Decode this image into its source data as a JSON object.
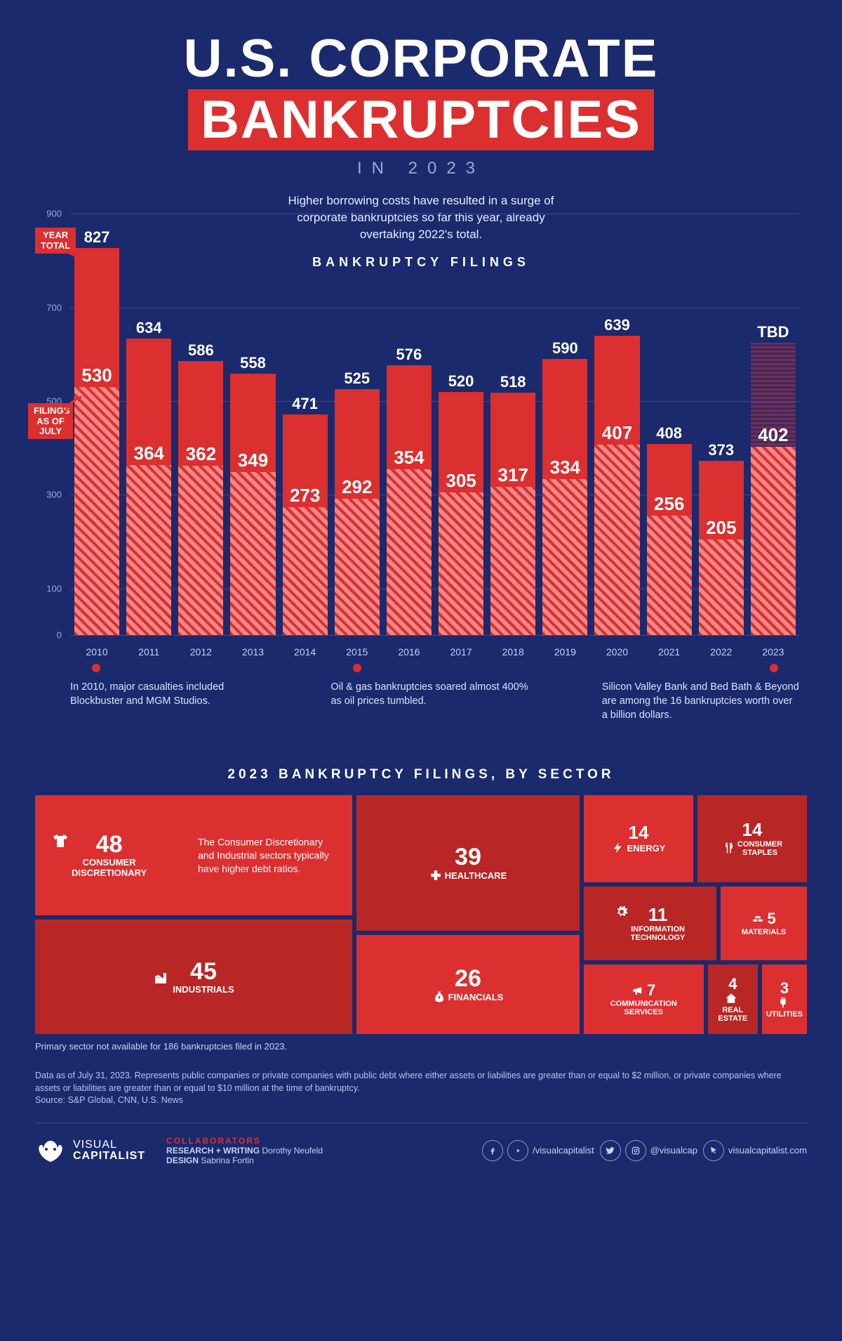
{
  "colors": {
    "bg": "#1a2a6c",
    "accent": "#dc2f2f",
    "accentDark": "#b82626",
    "textMuted": "#9aa8d8",
    "grid": "#3a4a8c"
  },
  "title": {
    "part1": "U.S. CORPORATE",
    "part2": "BANKRUPTCIES",
    "subtitle": "IN 2023"
  },
  "intro": "Higher borrowing costs have resulted in a surge of corporate bankruptcies so far this year, already overtaking 2022's total.",
  "chart": {
    "section_label": "BANKRUPTCY FILINGS",
    "type": "bar",
    "ylim": [
      0,
      900
    ],
    "yticks": [
      0,
      100,
      300,
      500,
      700,
      900
    ],
    "years": [
      "2010",
      "2011",
      "2012",
      "2013",
      "2014",
      "2015",
      "2016",
      "2017",
      "2018",
      "2019",
      "2020",
      "2021",
      "2022",
      "2023"
    ],
    "year_total": [
      827,
      634,
      586,
      558,
      471,
      525,
      576,
      520,
      518,
      590,
      639,
      408,
      373,
      null
    ],
    "july_filings": [
      530,
      364,
      362,
      349,
      273,
      292,
      354,
      305,
      317,
      334,
      407,
      256,
      205,
      402
    ],
    "tbd_label": "TBD",
    "tbd_bar_height": 625,
    "legend": {
      "total": "YEAR\nTOTAL",
      "july": "FILINGS\nAS OF\nJULY"
    },
    "title_fontsize": 18,
    "total_color": "#dc2f2f",
    "july_pattern": "diagonal-hatch",
    "grid_color": "#3a4a8c",
    "label_fontsize": 14
  },
  "annotations": [
    {
      "x": "2010",
      "text": "In 2010, major casualties included Blockbuster and MGM Studios."
    },
    {
      "x": "2015",
      "text": "Oil & gas bankruptcies soared almost 400% as oil prices tumbled."
    },
    {
      "x": "2023",
      "text": "Silicon Valley Bank and Bed Bath & Beyond are among the 16 bankruptcies worth over a billion dollars."
    }
  ],
  "treemap": {
    "title": "2023 BANKRUPTCY FILINGS, BY SECTOR",
    "note": "The Consumer Discretionary and Industrial sectors typically have higher debt ratios.",
    "footnote": "Primary sector not available for 186 bankruptcies filed in 2023.",
    "sectors": {
      "consumer_discretionary": {
        "value": 48,
        "label": "CONSUMER\nDISCRETIONARY"
      },
      "industrials": {
        "value": 45,
        "label": "INDUSTRIALS"
      },
      "healthcare": {
        "value": 39,
        "label": "HEALTHCARE"
      },
      "financials": {
        "value": 26,
        "label": "FINANCIALS"
      },
      "energy": {
        "value": 14,
        "label": "ENERGY"
      },
      "consumer_staples": {
        "value": 14,
        "label": "CONSUMER\nSTAPLES"
      },
      "information_technology": {
        "value": 11,
        "label": "INFORMATION\nTECHNOLOGY"
      },
      "materials": {
        "value": 5,
        "label": "MATERIALS"
      },
      "communication_services": {
        "value": 7,
        "label": "COMMUNICATION\nSERVICES"
      },
      "real_estate": {
        "value": 4,
        "label": "REAL\nESTATE"
      },
      "utilities": {
        "value": 3,
        "label": "UTILITIES"
      }
    }
  },
  "disclaimer": "Data as of July 31, 2023. Represents public companies or private companies with public debt where either assets or liabilities are greater than or equal to $2 million, or private companies where assets or liabilities are greater than or equal to $10 million at the time of bankruptcy.\nSource: S&P Global, CNN, U.S. News",
  "footer": {
    "brand1": "VISUAL",
    "brand2": "CAPITALIST",
    "collab_label": "COLLABORATORS",
    "research_label": "RESEARCH + WRITING",
    "research_name": "Dorothy Neufeld",
    "design_label": "DESIGN",
    "design_name": "Sabrina Fortin",
    "handle1": "/visualcapitalist",
    "handle2": "@visualcap",
    "site": "visualcapitalist.com"
  }
}
